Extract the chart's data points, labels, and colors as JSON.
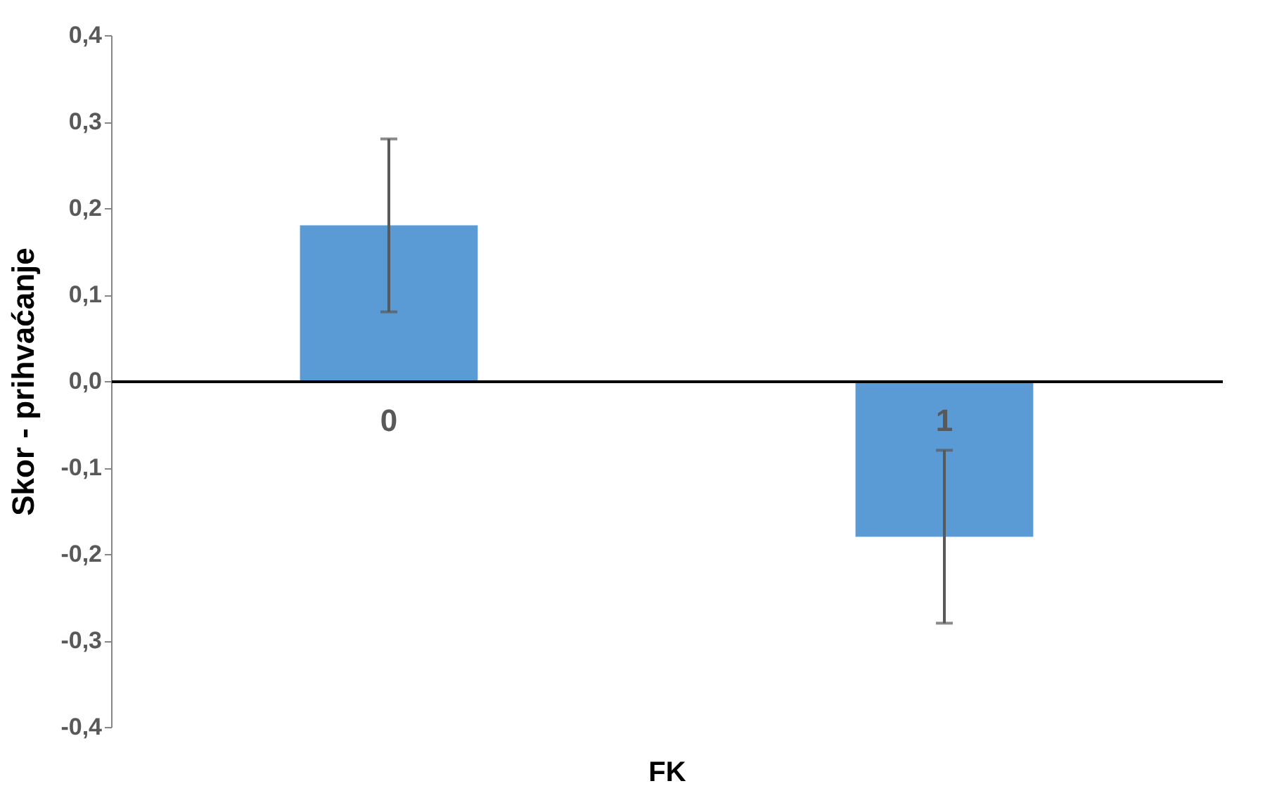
{
  "chart_data": {
    "type": "bar",
    "categories": [
      "0",
      "1"
    ],
    "series": [
      {
        "color": "#5b9bd5",
        "values": [
          0.18,
          -0.18
        ],
        "errors": [
          0.1,
          0.1
        ]
      }
    ],
    "xlabel": "FK",
    "ylabel": "Skor - prihvaćanje",
    "ylim": [
      -0.4,
      0.4
    ],
    "yticks": [
      {
        "value": -0.4,
        "label": "-0,4"
      },
      {
        "value": -0.3,
        "label": "-0,3"
      },
      {
        "value": -0.2,
        "label": "-0,2"
      },
      {
        "value": -0.1,
        "label": "-0,1"
      },
      {
        "value": 0,
        "label": "0,0"
      },
      {
        "value": 0.1,
        "label": "0,1"
      },
      {
        "value": 0.2,
        "label": "0,2"
      },
      {
        "value": 0.3,
        "label": "0,3"
      },
      {
        "value": 0.4,
        "label": "0,4"
      }
    ],
    "grid": false
  }
}
